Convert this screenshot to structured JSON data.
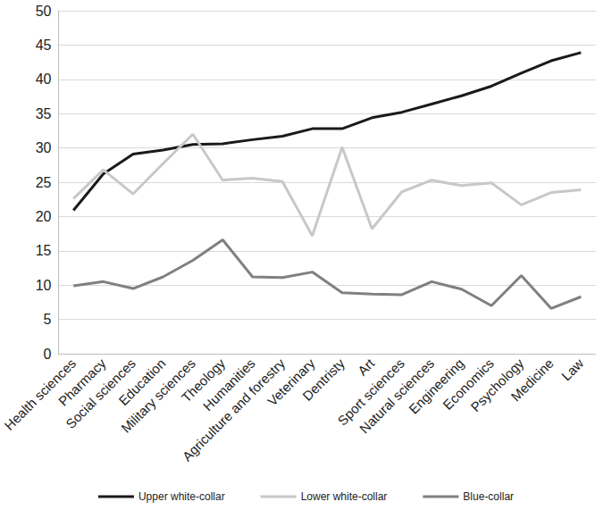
{
  "chart_data": {
    "type": "line",
    "categories": [
      "Health sciences",
      "Pharmacy",
      "Social sciences",
      "Education",
      "Military sciences",
      "Theology",
      "Humanities",
      "Agriculture and forestry",
      "Veterinary",
      "Dentristy",
      "Art",
      "Sport sciences",
      "Natural sciences",
      "Engineering",
      "Economics",
      "Psychology",
      "Medicine",
      "Law"
    ],
    "series": [
      {
        "name": "Upper white-collar",
        "color": "#1a1a1a",
        "values": [
          20.9,
          26.2,
          29.1,
          29.7,
          30.5,
          30.6,
          31.2,
          31.7,
          32.8,
          32.8,
          34.4,
          35.2,
          36.4,
          37.6,
          39.0,
          40.9,
          42.7,
          43.9
        ]
      },
      {
        "name": "Lower white-collar",
        "color": "#c8c8c8",
        "values": [
          22.6,
          26.8,
          23.3,
          27.7,
          32.0,
          25.3,
          25.6,
          25.1,
          17.2,
          30.1,
          18.2,
          23.6,
          25.3,
          24.5,
          24.9,
          21.7,
          23.5,
          23.9
        ]
      },
      {
        "name": "Blue-collar",
        "color": "#808080",
        "values": [
          9.9,
          10.5,
          9.5,
          11.2,
          13.6,
          16.6,
          11.2,
          11.1,
          11.9,
          8.9,
          8.7,
          8.6,
          10.5,
          9.4,
          7.0,
          11.4,
          6.6,
          8.3
        ]
      }
    ],
    "ylim": [
      0,
      50
    ],
    "yticks": [
      0,
      5,
      10,
      15,
      20,
      25,
      30,
      35,
      40,
      45,
      50
    ],
    "grid": true,
    "legend": "bottom",
    "marker": "none",
    "line_style": "solid"
  }
}
